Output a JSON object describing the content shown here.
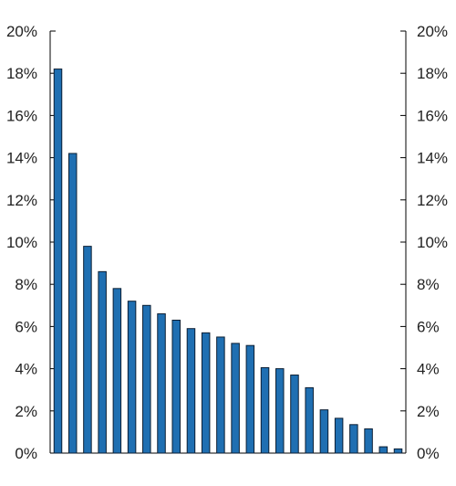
{
  "chart_data": {
    "type": "bar",
    "title": "",
    "xlabel": "",
    "ylabel": "",
    "ylim": [
      0,
      20
    ],
    "y_ticks": [
      0,
      2,
      4,
      6,
      8,
      10,
      12,
      14,
      16,
      18,
      20
    ],
    "y_tick_format": "percent",
    "y_tick_labels": [
      "0%",
      "2%",
      "4%",
      "6%",
      "8%",
      "10%",
      "12%",
      "14%",
      "16%",
      "18%",
      "20%"
    ],
    "dual_y_axis": true,
    "grid": false,
    "bar_color": "#1f6fb2",
    "values": [
      18.2,
      14.2,
      9.8,
      8.6,
      7.8,
      7.2,
      7.0,
      6.6,
      6.3,
      5.9,
      5.7,
      5.5,
      5.2,
      5.1,
      4.05,
      4.0,
      3.7,
      3.1,
      2.05,
      1.65,
      1.35,
      1.15,
      0.3,
      0.2
    ]
  }
}
